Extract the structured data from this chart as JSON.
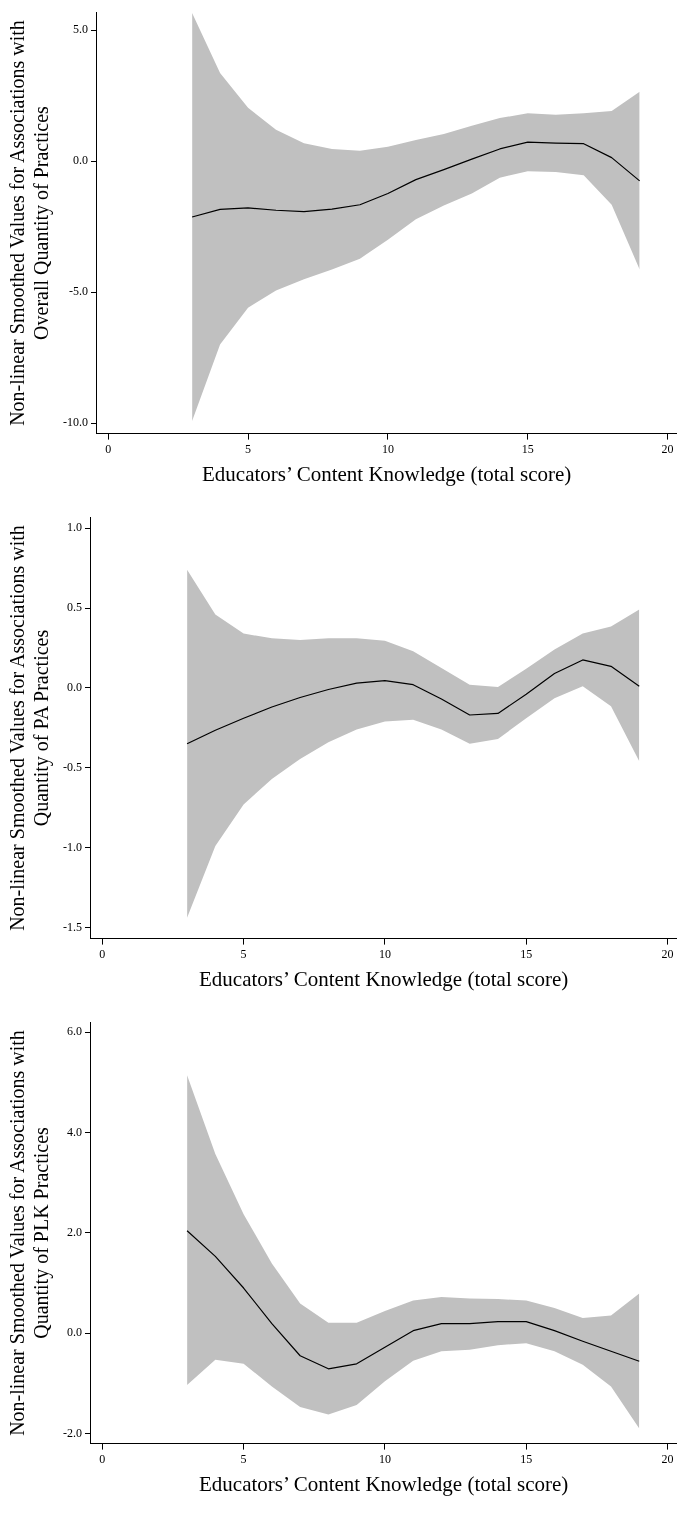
{
  "chart_data": [
    {
      "type": "line",
      "xlabel": "Educators’ Content Knowledge (total score)",
      "ylabel": "Non-linear Smoothed Values for Associations with Overall Quantity of Practices",
      "x": [
        3,
        4,
        5,
        6,
        7,
        8,
        9,
        10,
        11,
        12,
        13,
        14,
        15,
        16,
        17,
        18,
        19
      ],
      "xlim": [
        -0.4,
        20.3
      ],
      "xticks": [
        0,
        5,
        10,
        15,
        20
      ],
      "ylim": [
        -10.4,
        5.7
      ],
      "yticks": [
        {
          "value": 5,
          "label": "5.0"
        },
        {
          "value": 0,
          "label": "0.0"
        },
        {
          "value": -5,
          "label": "-5.0"
        },
        {
          "value": -10,
          "label": "-10.0"
        }
      ],
      "marker": "none",
      "line_style": "solid",
      "series": [
        {
          "color": "#000000",
          "values": [
            -2.13,
            -1.84,
            -1.78,
            -1.87,
            -1.92,
            -1.83,
            -1.66,
            -1.23,
            -0.7,
            -0.32,
            0.08,
            0.47,
            0.73,
            0.69,
            0.67,
            0.14,
            -0.75
          ],
          "lower": [
            -9.92,
            -7.0,
            -5.59,
            -4.94,
            -4.51,
            -4.13,
            -3.72,
            -3.0,
            -2.21,
            -1.69,
            -1.23,
            -0.63,
            -0.38,
            -0.41,
            -0.53,
            -1.66,
            -4.13
          ],
          "upper": [
            5.66,
            3.37,
            2.04,
            1.2,
            0.69,
            0.47,
            0.4,
            0.55,
            0.81,
            1.04,
            1.36,
            1.65,
            1.83,
            1.78,
            1.83,
            1.92,
            2.65
          ]
        }
      ]
    },
    {
      "type": "line",
      "xlabel": "Educators’ Content Knowledge (total score)",
      "ylabel": "Non-linear Smoothed Values for Associations with Quantity of PA Practices",
      "x": [
        3,
        4,
        5,
        6,
        7,
        8,
        9,
        10,
        11,
        12,
        13,
        14,
        15,
        16,
        17,
        18,
        19
      ],
      "xlim": [
        -0.4,
        20.3
      ],
      "xticks": [
        0,
        5,
        10,
        15,
        20
      ],
      "ylim": [
        -1.57,
        1.07
      ],
      "yticks": [
        {
          "value": 1,
          "label": "1.0"
        },
        {
          "value": 0.5,
          "label": "0.5"
        },
        {
          "value": 0,
          "label": "0.0"
        },
        {
          "value": -0.5,
          "label": "-0.5"
        },
        {
          "value": -1,
          "label": "-1.0"
        },
        {
          "value": -1.5,
          "label": "-1.5"
        }
      ],
      "marker": "none",
      "line_style": "solid",
      "series": [
        {
          "color": "#000000",
          "values": [
            -0.35,
            -0.265,
            -0.19,
            -0.12,
            -0.06,
            -0.01,
            0.03,
            0.045,
            0.02,
            -0.07,
            -0.17,
            -0.16,
            -0.04,
            0.09,
            0.175,
            0.135,
            0.01
          ],
          "lower": [
            -1.44,
            -0.99,
            -0.73,
            -0.57,
            -0.445,
            -0.34,
            -0.26,
            -0.21,
            -0.2,
            -0.26,
            -0.35,
            -0.32,
            -0.19,
            -0.065,
            0.01,
            -0.115,
            -0.46
          ],
          "upper": [
            0.74,
            0.46,
            0.34,
            0.31,
            0.3,
            0.31,
            0.31,
            0.295,
            0.23,
            0.125,
            0.02,
            0.005,
            0.12,
            0.24,
            0.34,
            0.385,
            0.49
          ]
        }
      ]
    },
    {
      "type": "line",
      "xlabel": "Educators’ Content Knowledge (total score)",
      "ylabel": "Non-linear Smoothed Values for Associations with Quantity of PLK Practices",
      "x": [
        3,
        4,
        5,
        6,
        7,
        8,
        9,
        10,
        11,
        12,
        13,
        14,
        15,
        16,
        17,
        18,
        19
      ],
      "xlim": [
        -0.4,
        20.3
      ],
      "xticks": [
        0,
        5,
        10,
        15,
        20
      ],
      "ylim": [
        -2.2,
        6.2
      ],
      "yticks": [
        {
          "value": 6,
          "label": "6.0"
        },
        {
          "value": 4,
          "label": "4.0"
        },
        {
          "value": 2,
          "label": "2.0"
        },
        {
          "value": 0,
          "label": "0.0"
        },
        {
          "value": -2,
          "label": "-2.0"
        }
      ],
      "marker": "none",
      "line_style": "solid",
      "series": [
        {
          "color": "#000000",
          "values": [
            2.04,
            1.53,
            0.9,
            0.19,
            -0.45,
            -0.71,
            -0.61,
            -0.28,
            0.05,
            0.19,
            0.19,
            0.23,
            0.23,
            0.05,
            -0.16,
            -0.36,
            -0.56
          ],
          "lower": [
            -1.03,
            -0.53,
            -0.61,
            -1.06,
            -1.47,
            -1.62,
            -1.43,
            -0.96,
            -0.55,
            -0.36,
            -0.33,
            -0.24,
            -0.2,
            -0.36,
            -0.63,
            -1.06,
            -1.9
          ],
          "upper": [
            5.14,
            3.57,
            2.37,
            1.39,
            0.59,
            0.21,
            0.21,
            0.44,
            0.65,
            0.72,
            0.69,
            0.68,
            0.65,
            0.5,
            0.3,
            0.35,
            0.79
          ]
        }
      ]
    }
  ]
}
